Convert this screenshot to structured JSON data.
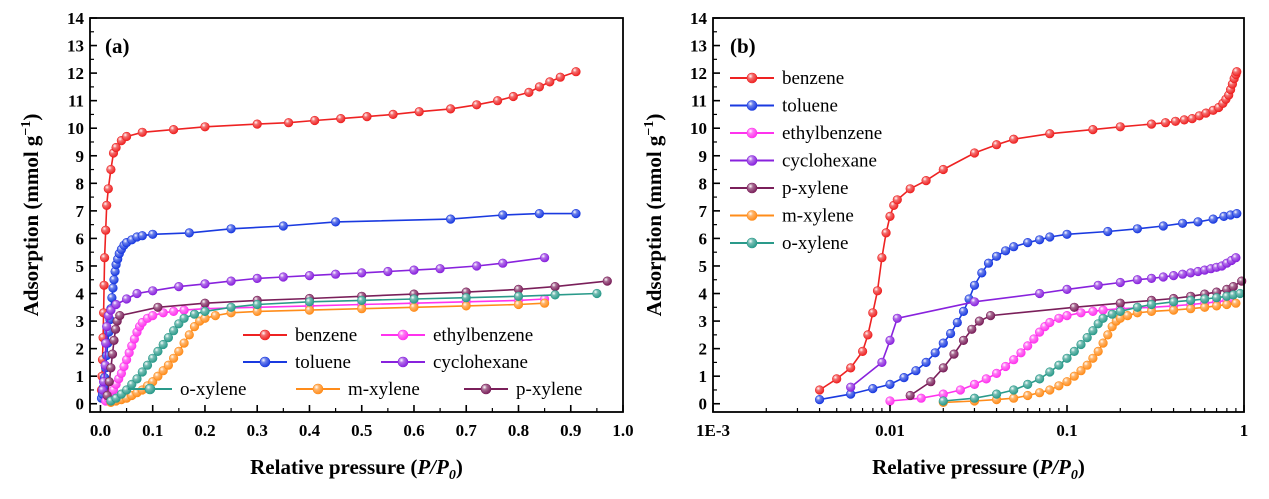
{
  "chart_data": [
    {
      "type": "line",
      "panel_label": "(a)",
      "xlabel_text": "Relative pressure (",
      "xlabel_var": "P/P",
      "xlabel_sub": "0",
      "xlabel_close": ")",
      "ylabel_text": "Adsorption (mmol g",
      "ylabel_sup": "−1",
      "ylabel_close": ")",
      "x_scale": "linear",
      "xlim": [
        -0.02,
        1.0
      ],
      "ylim": [
        -0.3,
        14
      ],
      "xticks": [
        0.0,
        0.1,
        0.2,
        0.3,
        0.4,
        0.5,
        0.6,
        0.7,
        0.8,
        0.9,
        1.0
      ],
      "xtick_labels": [
        "0.0",
        "0.1",
        "0.2",
        "0.3",
        "0.4",
        "0.5",
        "0.6",
        "0.7",
        "0.8",
        "0.9",
        "1.0"
      ],
      "yticks": [
        0,
        1,
        2,
        3,
        4,
        5,
        6,
        7,
        8,
        9,
        10,
        11,
        12,
        13,
        14
      ],
      "ytick_labels": [
        "0",
        "1",
        "2",
        "3",
        "4",
        "5",
        "6",
        "7",
        "8",
        "9",
        "10",
        "11",
        "12",
        "13",
        "14"
      ],
      "grid": false,
      "legend_position": "bottom-right, three rows of two",
      "legend": [
        "benzene",
        "ethylbenzene",
        "toluene",
        "cyclohexane",
        "o-xylene",
        "m-xylene",
        "p-xylene"
      ],
      "series": [
        {
          "name": "benzene",
          "color": "#ee2222",
          "x": [
            0.002,
            0.003,
            0.004,
            0.005,
            0.006,
            0.007,
            0.008,
            0.01,
            0.012,
            0.015,
            0.02,
            0.025,
            0.03,
            0.04,
            0.05,
            0.08,
            0.14,
            0.2,
            0.3,
            0.36,
            0.41,
            0.46,
            0.51,
            0.56,
            0.61,
            0.67,
            0.72,
            0.76,
            0.79,
            0.82,
            0.84,
            0.86,
            0.88,
            0.91
          ],
          "y": [
            0.5,
            1.0,
            1.6,
            2.4,
            3.3,
            4.3,
            5.3,
            6.3,
            7.2,
            7.8,
            8.5,
            9.1,
            9.3,
            9.55,
            9.7,
            9.85,
            9.95,
            10.05,
            10.15,
            10.2,
            10.28,
            10.35,
            10.42,
            10.5,
            10.6,
            10.7,
            10.85,
            11.0,
            11.15,
            11.3,
            11.5,
            11.68,
            11.85,
            12.05
          ]
        },
        {
          "name": "toluene",
          "color": "#1a3ae0",
          "x": [
            0.002,
            0.004,
            0.006,
            0.008,
            0.01,
            0.012,
            0.014,
            0.016,
            0.018,
            0.02,
            0.022,
            0.024,
            0.026,
            0.028,
            0.03,
            0.033,
            0.036,
            0.04,
            0.045,
            0.05,
            0.06,
            0.07,
            0.08,
            0.1,
            0.17,
            0.25,
            0.35,
            0.45,
            0.67,
            0.77,
            0.84,
            0.91
          ],
          "y": [
            0.2,
            0.35,
            0.6,
            0.95,
            1.3,
            1.75,
            2.2,
            2.6,
            3.05,
            3.45,
            3.85,
            4.2,
            4.5,
            4.8,
            5.05,
            5.25,
            5.45,
            5.6,
            5.75,
            5.85,
            5.95,
            6.05,
            6.1,
            6.15,
            6.2,
            6.35,
            6.45,
            6.6,
            6.7,
            6.85,
            6.9,
            6.9
          ]
        },
        {
          "name": "ethylbenzene",
          "color": "#ff33ee",
          "x": [
            0.01,
            0.015,
            0.02,
            0.025,
            0.03,
            0.035,
            0.04,
            0.045,
            0.05,
            0.055,
            0.06,
            0.065,
            0.07,
            0.075,
            0.08,
            0.09,
            0.1,
            0.12,
            0.14,
            0.16,
            0.2,
            0.3,
            0.4,
            0.5,
            0.6,
            0.7,
            0.8,
            0.85
          ],
          "y": [
            0.1,
            0.2,
            0.35,
            0.5,
            0.7,
            0.9,
            1.1,
            1.35,
            1.6,
            1.85,
            2.1,
            2.35,
            2.6,
            2.8,
            2.95,
            3.1,
            3.2,
            3.3,
            3.35,
            3.4,
            3.45,
            3.5,
            3.55,
            3.6,
            3.65,
            3.7,
            3.75,
            3.8
          ]
        },
        {
          "name": "cyclohexane",
          "color": "#8822dd",
          "x": [
            0.004,
            0.006,
            0.009,
            0.01,
            0.012,
            0.015,
            0.02,
            0.03,
            0.05,
            0.07,
            0.1,
            0.15,
            0.2,
            0.25,
            0.3,
            0.35,
            0.4,
            0.45,
            0.5,
            0.55,
            0.6,
            0.65,
            0.72,
            0.77,
            0.85
          ],
          "y": [
            0.5,
            0.8,
            1.4,
            2.2,
            2.8,
            3.2,
            3.4,
            3.6,
            3.8,
            4.0,
            4.1,
            4.25,
            4.35,
            4.45,
            4.55,
            4.6,
            4.65,
            4.7,
            4.75,
            4.8,
            4.85,
            4.9,
            5.0,
            5.1,
            5.3
          ]
        },
        {
          "name": "p-xylene",
          "color": "#7a1f5a",
          "x": [
            0.013,
            0.017,
            0.02,
            0.023,
            0.026,
            0.029,
            0.032,
            0.037,
            0.11,
            0.2,
            0.3,
            0.4,
            0.5,
            0.6,
            0.7,
            0.8,
            0.87,
            0.97
          ],
          "y": [
            0.3,
            0.8,
            1.3,
            1.8,
            2.3,
            2.7,
            3.0,
            3.2,
            3.5,
            3.65,
            3.75,
            3.82,
            3.9,
            3.98,
            4.05,
            4.15,
            4.25,
            4.45
          ]
        },
        {
          "name": "m-xylene",
          "color": "#ff8c1a",
          "x": [
            0.02,
            0.03,
            0.04,
            0.05,
            0.06,
            0.07,
            0.08,
            0.09,
            0.1,
            0.11,
            0.12,
            0.13,
            0.14,
            0.15,
            0.16,
            0.17,
            0.18,
            0.19,
            0.2,
            0.22,
            0.25,
            0.3,
            0.4,
            0.5,
            0.6,
            0.7,
            0.8,
            0.85
          ],
          "y": [
            0.05,
            0.1,
            0.15,
            0.2,
            0.3,
            0.4,
            0.5,
            0.65,
            0.8,
            1.0,
            1.2,
            1.4,
            1.65,
            1.9,
            2.2,
            2.5,
            2.8,
            3.0,
            3.1,
            3.2,
            3.3,
            3.35,
            3.4,
            3.45,
            3.5,
            3.55,
            3.6,
            3.65
          ]
        },
        {
          "name": "o-xylene",
          "color": "#2a9a8a",
          "x": [
            0.02,
            0.03,
            0.04,
            0.05,
            0.06,
            0.07,
            0.08,
            0.09,
            0.1,
            0.11,
            0.12,
            0.13,
            0.14,
            0.15,
            0.16,
            0.18,
            0.2,
            0.25,
            0.3,
            0.4,
            0.5,
            0.6,
            0.7,
            0.8,
            0.87,
            0.95
          ],
          "y": [
            0.1,
            0.2,
            0.35,
            0.5,
            0.7,
            0.9,
            1.15,
            1.4,
            1.65,
            1.9,
            2.15,
            2.4,
            2.65,
            2.9,
            3.1,
            3.25,
            3.35,
            3.5,
            3.6,
            3.7,
            3.75,
            3.8,
            3.85,
            3.9,
            3.95,
            4.0
          ]
        }
      ]
    },
    {
      "type": "line",
      "panel_label": "(b)",
      "xlabel_text": "Relative pressure (",
      "xlabel_var": "P/P",
      "xlabel_sub": "0",
      "xlabel_close": ")",
      "ylabel_text": "Adsorption (mmol g",
      "ylabel_sup": "−1",
      "ylabel_close": ")",
      "x_scale": "log",
      "xlim": [
        0.001,
        1
      ],
      "ylim": [
        -0.3,
        14
      ],
      "xticks": [
        0.001,
        0.01,
        0.1,
        1
      ],
      "xtick_labels": [
        "1E-3",
        "0.01",
        "0.1",
        "1"
      ],
      "yticks": [
        0,
        1,
        2,
        3,
        4,
        5,
        6,
        7,
        8,
        9,
        10,
        11,
        12,
        13,
        14
      ],
      "ytick_labels": [
        "0",
        "1",
        "2",
        "3",
        "4",
        "5",
        "6",
        "7",
        "8",
        "9",
        "10",
        "11",
        "12",
        "13",
        "14"
      ],
      "grid": false,
      "legend_position": "top-left, single column",
      "legend": [
        "benzene",
        "toluene",
        "ethylbenzene",
        "cyclohexane",
        "p-xylene",
        "m-xylene",
        "o-xylene"
      ],
      "series": [
        {
          "name": "benzene",
          "color": "#ee2222",
          "x": [
            0.004,
            0.005,
            0.006,
            0.007,
            0.0075,
            0.008,
            0.0085,
            0.009,
            0.0095,
            0.01,
            0.0105,
            0.011,
            0.013,
            0.016,
            0.02,
            0.03,
            0.04,
            0.05,
            0.08,
            0.14,
            0.2,
            0.3,
            0.36,
            0.41,
            0.46,
            0.51,
            0.56,
            0.61,
            0.67,
            0.72,
            0.76,
            0.79,
            0.82,
            0.84,
            0.86,
            0.88,
            0.9,
            0.91
          ],
          "y": [
            0.5,
            0.9,
            1.3,
            1.9,
            2.5,
            3.3,
            4.1,
            5.3,
            6.2,
            6.8,
            7.2,
            7.4,
            7.8,
            8.1,
            8.5,
            9.1,
            9.4,
            9.6,
            9.8,
            9.95,
            10.05,
            10.15,
            10.2,
            10.25,
            10.3,
            10.35,
            10.45,
            10.55,
            10.65,
            10.75,
            10.9,
            11.05,
            11.2,
            11.4,
            11.6,
            11.8,
            11.95,
            12.05
          ]
        },
        {
          "name": "toluene",
          "color": "#1a3ae0",
          "x": [
            0.004,
            0.006,
            0.008,
            0.01,
            0.012,
            0.014,
            0.016,
            0.018,
            0.02,
            0.022,
            0.024,
            0.026,
            0.028,
            0.03,
            0.033,
            0.036,
            0.04,
            0.045,
            0.05,
            0.06,
            0.07,
            0.08,
            0.1,
            0.17,
            0.25,
            0.35,
            0.45,
            0.55,
            0.67,
            0.77,
            0.84,
            0.91
          ],
          "y": [
            0.15,
            0.35,
            0.55,
            0.7,
            0.95,
            1.2,
            1.5,
            1.85,
            2.2,
            2.55,
            2.95,
            3.35,
            3.8,
            4.3,
            4.75,
            5.1,
            5.35,
            5.55,
            5.7,
            5.85,
            5.95,
            6.05,
            6.15,
            6.25,
            6.35,
            6.45,
            6.55,
            6.6,
            6.7,
            6.8,
            6.85,
            6.9
          ]
        },
        {
          "name": "ethylbenzene",
          "color": "#ff33ee",
          "x": [
            0.01,
            0.015,
            0.02,
            0.025,
            0.03,
            0.035,
            0.04,
            0.045,
            0.05,
            0.055,
            0.06,
            0.065,
            0.07,
            0.075,
            0.08,
            0.09,
            0.1,
            0.12,
            0.14,
            0.16,
            0.2,
            0.3,
            0.4,
            0.5,
            0.6,
            0.7,
            0.8,
            0.85
          ],
          "y": [
            0.1,
            0.2,
            0.35,
            0.5,
            0.7,
            0.9,
            1.1,
            1.35,
            1.6,
            1.85,
            2.1,
            2.35,
            2.6,
            2.8,
            2.95,
            3.1,
            3.2,
            3.3,
            3.35,
            3.4,
            3.45,
            3.5,
            3.55,
            3.6,
            3.65,
            3.7,
            3.75,
            3.8
          ]
        },
        {
          "name": "cyclohexane",
          "color": "#8822dd",
          "x": [
            0.006,
            0.009,
            0.01,
            0.011,
            0.03,
            0.07,
            0.1,
            0.15,
            0.2,
            0.25,
            0.3,
            0.35,
            0.4,
            0.45,
            0.5,
            0.55,
            0.6,
            0.65,
            0.7,
            0.75,
            0.8,
            0.85,
            0.9
          ],
          "y": [
            0.6,
            1.5,
            2.3,
            3.1,
            3.7,
            4.0,
            4.15,
            4.3,
            4.4,
            4.5,
            4.55,
            4.6,
            4.65,
            4.7,
            4.75,
            4.8,
            4.85,
            4.9,
            4.95,
            5.0,
            5.1,
            5.2,
            5.3
          ]
        },
        {
          "name": "p-xylene",
          "color": "#7a1f5a",
          "x": [
            0.013,
            0.017,
            0.02,
            0.023,
            0.026,
            0.029,
            0.032,
            0.037,
            0.11,
            0.2,
            0.3,
            0.4,
            0.5,
            0.6,
            0.7,
            0.8,
            0.87,
            0.97
          ],
          "y": [
            0.3,
            0.8,
            1.3,
            1.8,
            2.3,
            2.7,
            3.0,
            3.2,
            3.5,
            3.65,
            3.75,
            3.82,
            3.9,
            3.98,
            4.05,
            4.15,
            4.25,
            4.45
          ]
        },
        {
          "name": "m-xylene",
          "color": "#ff8c1a",
          "x": [
            0.02,
            0.03,
            0.04,
            0.05,
            0.06,
            0.07,
            0.08,
            0.09,
            0.1,
            0.11,
            0.12,
            0.13,
            0.14,
            0.15,
            0.16,
            0.17,
            0.18,
            0.19,
            0.2,
            0.22,
            0.25,
            0.3,
            0.4,
            0.5,
            0.6,
            0.7,
            0.8,
            0.9
          ],
          "y": [
            0.05,
            0.1,
            0.15,
            0.2,
            0.3,
            0.4,
            0.5,
            0.65,
            0.8,
            1.0,
            1.2,
            1.4,
            1.65,
            1.9,
            2.2,
            2.5,
            2.8,
            3.0,
            3.1,
            3.2,
            3.3,
            3.35,
            3.4,
            3.45,
            3.5,
            3.55,
            3.6,
            3.65
          ]
        },
        {
          "name": "o-xylene",
          "color": "#2a9a8a",
          "x": [
            0.02,
            0.03,
            0.04,
            0.05,
            0.06,
            0.07,
            0.08,
            0.09,
            0.1,
            0.11,
            0.12,
            0.13,
            0.14,
            0.15,
            0.16,
            0.18,
            0.2,
            0.25,
            0.3,
            0.4,
            0.5,
            0.6,
            0.7,
            0.8,
            0.87,
            0.95
          ],
          "y": [
            0.1,
            0.2,
            0.35,
            0.5,
            0.7,
            0.9,
            1.15,
            1.4,
            1.65,
            1.9,
            2.15,
            2.4,
            2.65,
            2.9,
            3.1,
            3.25,
            3.35,
            3.5,
            3.6,
            3.7,
            3.75,
            3.8,
            3.85,
            3.9,
            3.95,
            4.0
          ]
        }
      ]
    }
  ]
}
